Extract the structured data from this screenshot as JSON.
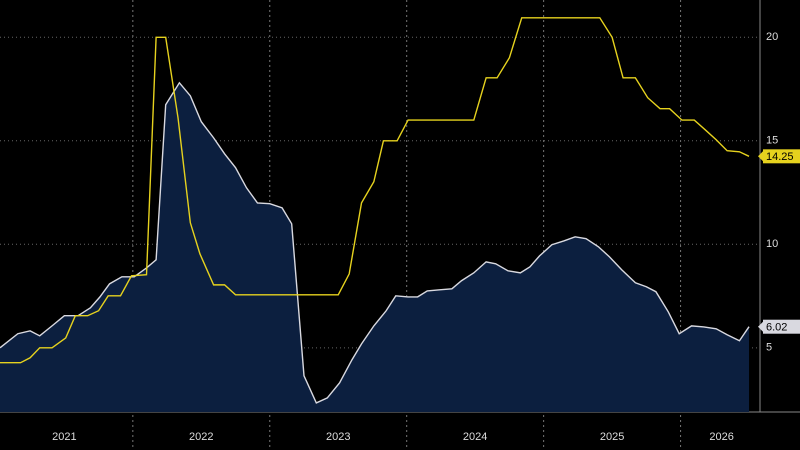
{
  "chart_data": {
    "type": "area_line",
    "xlim": [
      2021.03,
      2026.58
    ],
    "ylim": [
      1.9,
      21.8
    ],
    "yticks": [
      5,
      10,
      15,
      20
    ],
    "xgrid": [
      2022,
      2023,
      2024,
      2025,
      2026
    ],
    "xtick_labels": [
      {
        "value": 2021.5,
        "label": "2021"
      },
      {
        "value": 2022.5,
        "label": "2022"
      },
      {
        "value": 2023.5,
        "label": "2023"
      },
      {
        "value": 2024.5,
        "label": "2024"
      },
      {
        "value": 2025.5,
        "label": "2025"
      },
      {
        "value": 2026.3,
        "label": "2026"
      }
    ],
    "grid": true,
    "series": [
      {
        "color": "#d9d9e0",
        "fill": "#0c1f3f",
        "style": "area",
        "x": [
          2021.03,
          2021.16,
          2021.25,
          2021.32,
          2021.41,
          2021.5,
          2021.6,
          2021.69,
          2021.76,
          2021.83,
          2021.92,
          2022.01,
          2022.1,
          2022.17,
          2022.24,
          2022.34,
          2022.42,
          2022.5,
          2022.59,
          2022.67,
          2022.75,
          2022.83,
          2022.91,
          2023.0,
          2023.09,
          2023.16,
          2023.25,
          2023.34,
          2023.42,
          2023.51,
          2023.6,
          2023.67,
          2023.76,
          2023.85,
          2023.92,
          2024.01,
          2024.08,
          2024.15,
          2024.24,
          2024.33,
          2024.4,
          2024.49,
          2024.58,
          2024.65,
          2024.74,
          2024.83,
          2024.9,
          2024.97,
          2025.06,
          2025.15,
          2025.23,
          2025.31,
          2025.4,
          2025.48,
          2025.57,
          2025.67,
          2025.75,
          2025.82,
          2025.91,
          2025.99,
          2026.08,
          2026.17,
          2026.26,
          2026.34,
          2026.43,
          2026.5
        ],
        "values": [
          5.0,
          5.68,
          5.82,
          5.58,
          6.06,
          6.55,
          6.55,
          6.93,
          7.46,
          8.09,
          8.43,
          8.43,
          8.86,
          9.25,
          16.74,
          17.8,
          17.17,
          15.92,
          15.14,
          14.37,
          13.7,
          12.73,
          12.0,
          11.96,
          11.76,
          10.99,
          3.65,
          2.34,
          2.58,
          3.31,
          4.42,
          5.19,
          6.06,
          6.79,
          7.51,
          7.46,
          7.46,
          7.75,
          7.8,
          7.85,
          8.24,
          8.62,
          9.15,
          9.06,
          8.72,
          8.62,
          8.91,
          9.44,
          9.98,
          10.17,
          10.36,
          10.27,
          9.88,
          9.4,
          8.77,
          8.14,
          7.95,
          7.71,
          6.74,
          5.68,
          6.06,
          6.01,
          5.92,
          5.63,
          5.34,
          6.02
        ],
        "value_label": "6.02"
      },
      {
        "color": "#e6d21e",
        "style": "line",
        "x": [
          2021.03,
          2021.18,
          2021.25,
          2021.32,
          2021.41,
          2021.51,
          2021.58,
          2021.67,
          2021.75,
          2021.82,
          2021.91,
          2021.99,
          2022.1,
          2022.17,
          2022.24,
          2022.33,
          2022.42,
          2022.49,
          2022.59,
          2022.67,
          2022.75,
          2022.84,
          2023.5,
          2023.58,
          2023.67,
          2023.76,
          2023.83,
          2023.93,
          2024.01,
          2024.49,
          2024.58,
          2024.66,
          2024.75,
          2024.84,
          2025.41,
          2025.5,
          2025.58,
          2025.67,
          2025.76,
          2025.85,
          2025.92,
          2026.01,
          2026.1,
          2026.18,
          2026.26,
          2026.34,
          2026.43,
          2026.5
        ],
        "values": [
          4.28,
          4.28,
          4.52,
          5.0,
          5.0,
          5.48,
          6.55,
          6.55,
          6.79,
          7.51,
          7.51,
          8.48,
          8.53,
          20,
          20,
          16.11,
          11.04,
          9.54,
          8.04,
          8.04,
          7.56,
          7.56,
          7.56,
          8.57,
          12.0,
          13.02,
          15.0,
          15.0,
          16,
          16,
          18.04,
          18.04,
          19.01,
          20.94,
          20.94,
          20,
          18.04,
          18.04,
          17.08,
          16.55,
          16.55,
          16,
          16,
          15.53,
          15.05,
          14.52,
          14.47,
          14.25
        ],
        "value_label": "14.25"
      }
    ]
  }
}
